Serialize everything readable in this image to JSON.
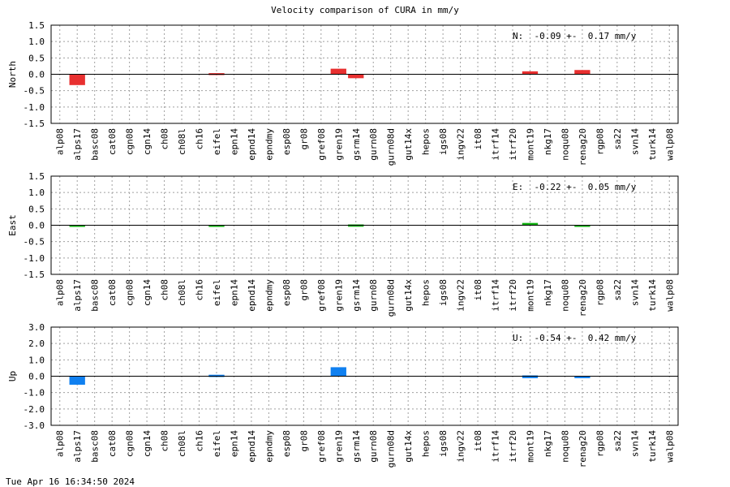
{
  "title": "Velocity comparison of CURA in mm/y",
  "timestamp": "Tue Apr 16 16:34:50 2024",
  "chart_data": [
    {
      "type": "bar",
      "ylabel": "North",
      "annotation": "N:  -0.09 +-  0.17 mm/y",
      "color": "#e83030",
      "ylim": [
        -1.5,
        1.5
      ],
      "yticks": [
        "1.5",
        "1.0",
        "0.5",
        "0.0",
        "-0.5",
        "-1.0",
        "-1.5"
      ],
      "categories": [
        "alp08",
        "alps17",
        "basc08",
        "cat08",
        "cgn08",
        "cgn14",
        "ch08",
        "ch08l",
        "ch16",
        "eifel",
        "epn14",
        "epnd14",
        "epndmy",
        "esp08",
        "gr08",
        "gref08",
        "gren19",
        "gsrm14",
        "gurn08",
        "gurn08d",
        "gut14x",
        "hepos",
        "igs08",
        "ingv22",
        "it08",
        "itrf14",
        "itrf20",
        "mont19",
        "nkg17",
        "noqu08",
        "renag20",
        "rgp08",
        "sa22",
        "svn14",
        "turk14",
        "walp08"
      ],
      "values": [
        null,
        -0.33,
        null,
        null,
        null,
        null,
        null,
        null,
        null,
        0.01,
        null,
        null,
        null,
        null,
        null,
        null,
        0.17,
        -0.12,
        null,
        null,
        null,
        null,
        null,
        null,
        null,
        null,
        null,
        0.09,
        null,
        null,
        0.13,
        null,
        null,
        null,
        null,
        null
      ],
      "grid": true
    },
    {
      "type": "bar",
      "ylabel": "East",
      "annotation": "E:  -0.22 +-  0.05 mm/y",
      "color": "#10b010",
      "ylim": [
        -1.5,
        1.5
      ],
      "yticks": [
        "1.5",
        "1.0",
        "0.5",
        "0.0",
        "-0.5",
        "-1.0",
        "-1.5"
      ],
      "categories": [
        "alp08",
        "alps17",
        "basc08",
        "cat08",
        "cgn08",
        "cgn14",
        "ch08",
        "ch08l",
        "ch16",
        "eifel",
        "epn14",
        "epnd14",
        "epndmy",
        "esp08",
        "gr08",
        "gref08",
        "gren19",
        "gsrm14",
        "gurn08",
        "gurn08d",
        "gut14x",
        "hepos",
        "igs08",
        "ingv22",
        "it08",
        "itrf14",
        "itrf20",
        "mont19",
        "nkg17",
        "noqu08",
        "renag20",
        "rgp08",
        "sa22",
        "svn14",
        "turk14",
        "walp08"
      ],
      "values": [
        null,
        -0.05,
        null,
        null,
        null,
        null,
        null,
        null,
        null,
        -0.05,
        null,
        null,
        null,
        null,
        null,
        null,
        null,
        -0.02,
        null,
        null,
        null,
        null,
        null,
        null,
        null,
        null,
        null,
        0.07,
        null,
        null,
        -0.05,
        null,
        null,
        null,
        null,
        null
      ],
      "grid": true
    },
    {
      "type": "bar",
      "ylabel": "Up",
      "annotation": "U:  -0.54 +-  0.42 mm/y",
      "color": "#1080f0",
      "ylim": [
        -3.0,
        3.0
      ],
      "yticks": [
        "3.0",
        "2.0",
        "1.0",
        "0.0",
        "-1.0",
        "-2.0",
        "-3.0"
      ],
      "categories": [
        "alp08",
        "alps17",
        "basc08",
        "cat08",
        "cgn08",
        "cgn14",
        "ch08",
        "ch08l",
        "ch16",
        "eifel",
        "epn14",
        "epnd14",
        "epndmy",
        "esp08",
        "gr08",
        "gref08",
        "gren19",
        "gsrm14",
        "gurn08",
        "gurn08d",
        "gut14x",
        "hepos",
        "igs08",
        "ingv22",
        "it08",
        "itrf14",
        "itrf20",
        "mont19",
        "nkg17",
        "noqu08",
        "renag20",
        "rgp08",
        "sa22",
        "svn14",
        "turk14",
        "walp08"
      ],
      "values": [
        null,
        -0.52,
        null,
        null,
        null,
        null,
        null,
        null,
        null,
        0.04,
        null,
        null,
        null,
        null,
        null,
        null,
        0.55,
        null,
        null,
        null,
        null,
        null,
        null,
        null,
        null,
        null,
        null,
        -0.07,
        null,
        null,
        -0.12,
        null,
        null,
        null,
        null,
        null
      ],
      "grid": true
    }
  ]
}
